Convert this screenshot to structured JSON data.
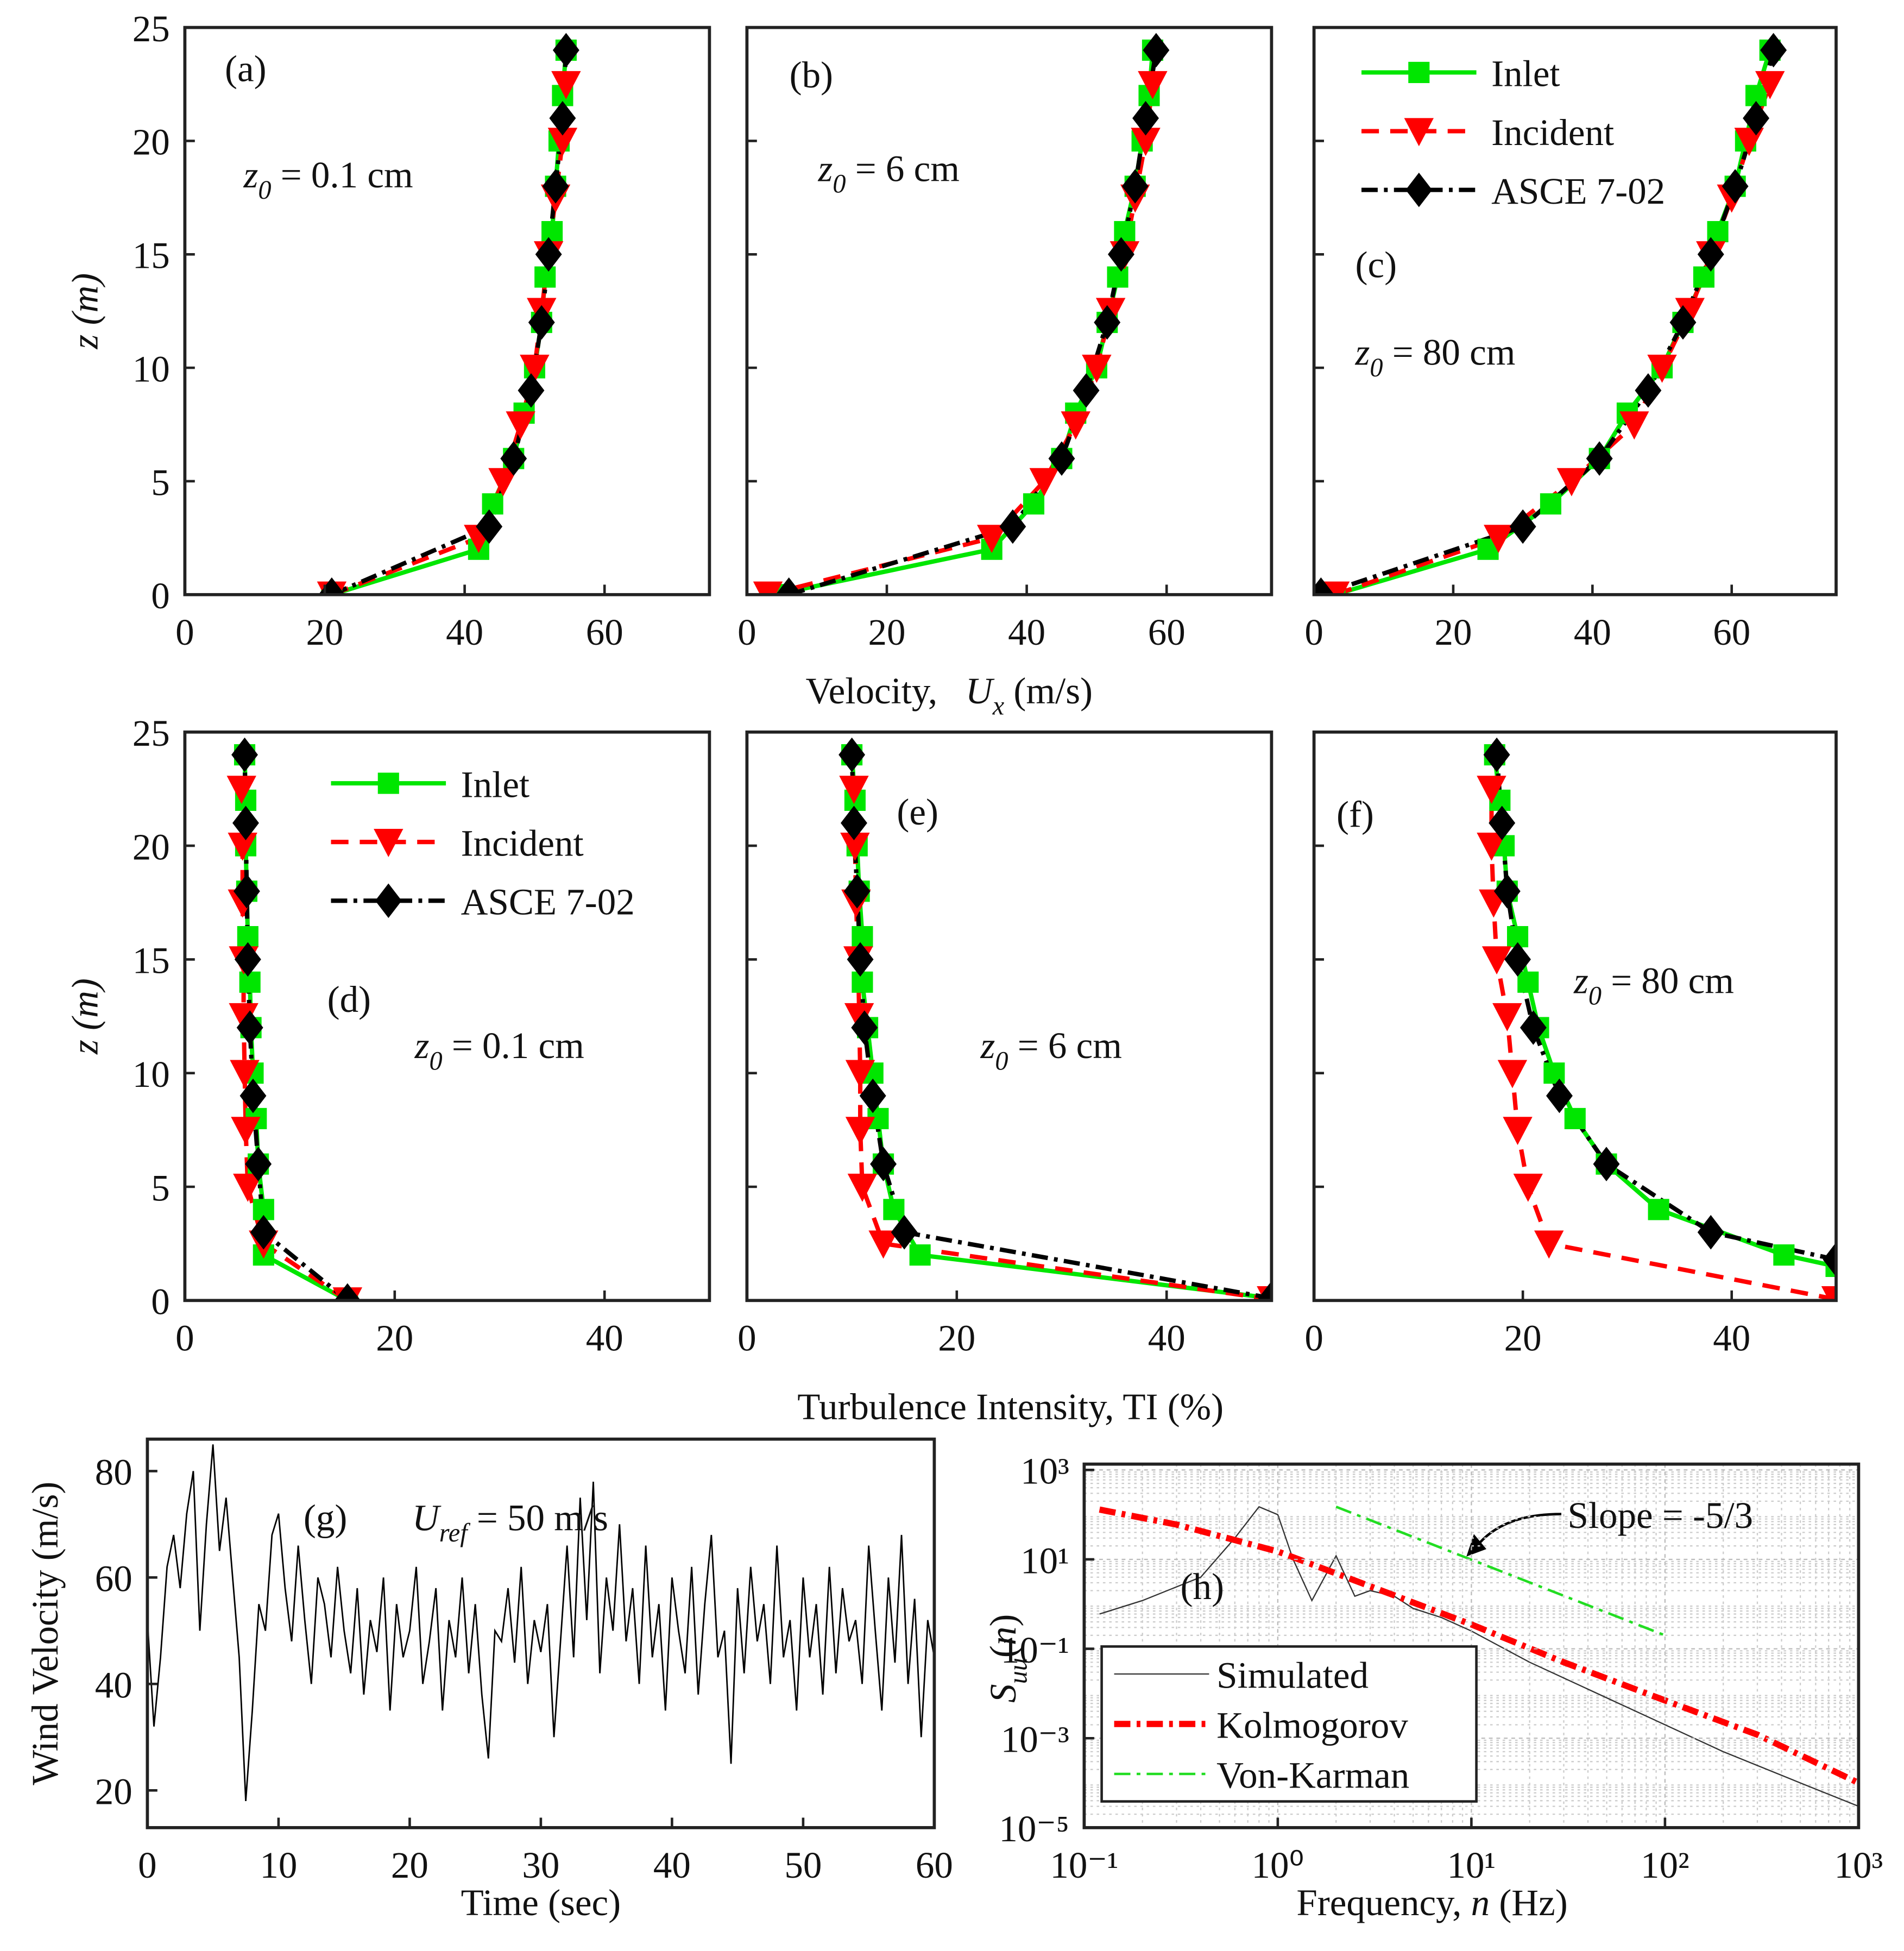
{
  "figure": {
    "top_xlabel": {
      "text": "Velocity,   ",
      "var": "U",
      "sub": "x",
      "unit": " (m/s)"
    },
    "mid_xlabel": "Turbulence Intensity, TI (%)"
  },
  "chart_data": [
    {
      "type": "profile",
      "label": "(a)",
      "annotation": {
        "z": "z",
        "sub": "0",
        "text": " = 0.1 cm"
      },
      "xlim": [
        0,
        75
      ],
      "xticks": [
        0,
        20,
        40,
        60
      ],
      "ylim": [
        0,
        25
      ],
      "yticks": [
        0,
        5,
        10,
        15,
        20,
        25
      ],
      "y_label": "z (m)",
      "ytick_labels": true,
      "series": [
        {
          "name": "Inlet",
          "color": "#00e600",
          "marker": "square",
          "dash": "solid",
          "y": [
            0,
            2,
            4,
            6,
            8,
            10,
            12,
            14,
            16,
            18,
            20,
            22,
            24
          ],
          "x": [
            21,
            42,
            44,
            47,
            48.5,
            50,
            51,
            51.5,
            52.5,
            53,
            53.5,
            54,
            54.5
          ]
        },
        {
          "name": "Incident",
          "color": "#ff0000",
          "marker": "triangle",
          "dash": "dashed",
          "y": [
            0,
            2.5,
            5,
            7.5,
            10,
            12.5,
            15,
            17.5,
            20,
            22.5
          ],
          "x": [
            21,
            42,
            45.5,
            48,
            50,
            51,
            52,
            53,
            54,
            54.5
          ]
        },
        {
          "name": "ASCE 7-02",
          "color": "#000000",
          "marker": "diamond",
          "dash": "dashdot",
          "y": [
            0,
            3,
            6,
            9,
            12,
            15,
            18,
            21,
            24
          ],
          "x": [
            21,
            43.5,
            47,
            49.5,
            51,
            52,
            53,
            54,
            54.5
          ]
        }
      ]
    },
    {
      "type": "profile",
      "label": "(b)",
      "annotation": {
        "z": "z",
        "sub": "0",
        "text": " = 6 cm"
      },
      "xlim": [
        0,
        75
      ],
      "xticks": [
        0,
        20,
        40,
        60
      ],
      "ylim": [
        0,
        25
      ],
      "yticks": [
        0,
        5,
        10,
        15,
        20,
        25
      ],
      "ytick_labels": false,
      "series": [
        {
          "name": "Inlet",
          "color": "#00e600",
          "marker": "square",
          "dash": "solid",
          "y": [
            0,
            2,
            4,
            6,
            8,
            10,
            12,
            14,
            16,
            18,
            20,
            22,
            24
          ],
          "x": [
            4,
            35,
            41,
            45,
            47,
            50,
            51.5,
            53,
            54,
            55.5,
            56.5,
            57.5,
            58
          ]
        },
        {
          "name": "Incident",
          "color": "#ff0000",
          "marker": "triangle",
          "dash": "dashed",
          "y": [
            0,
            2.5,
            5,
            7.5,
            10,
            12.5,
            15,
            17.5,
            20,
            22.5
          ],
          "x": [
            3,
            35,
            42.5,
            47,
            50,
            52,
            54,
            55.5,
            57,
            58
          ]
        },
        {
          "name": "ASCE 7-02",
          "color": "#000000",
          "marker": "diamond",
          "dash": "dashdot",
          "y": [
            0,
            3,
            6,
            9,
            12,
            15,
            18,
            21,
            24
          ],
          "x": [
            6,
            38,
            45,
            48.5,
            51.5,
            53.5,
            55.5,
            57,
            58.5
          ]
        }
      ]
    },
    {
      "type": "profile",
      "label": "(c)",
      "annotation": {
        "z": "z",
        "sub": "0",
        "text": " = 80 cm"
      },
      "xlim": [
        0,
        75
      ],
      "xticks": [
        0,
        20,
        40,
        60
      ],
      "ylim": [
        0,
        25
      ],
      "yticks": [
        0,
        5,
        10,
        15,
        20,
        25
      ],
      "ytick_labels": false,
      "legend": "upper right",
      "series": [
        {
          "name": "Inlet",
          "color": "#00e600",
          "marker": "square",
          "dash": "solid",
          "y": [
            0,
            2,
            4,
            6,
            8,
            10,
            12,
            14,
            16,
            18,
            20,
            22,
            24
          ],
          "x": [
            3,
            25,
            34,
            41,
            45,
            50,
            53,
            56,
            58,
            60.5,
            62,
            63.5,
            65.5
          ]
        },
        {
          "name": "Incident",
          "color": "#ff0000",
          "marker": "triangle",
          "dash": "dashed",
          "y": [
            0,
            2.5,
            5,
            7.5,
            10,
            12.5,
            15,
            17.5,
            20,
            22.5
          ],
          "x": [
            3,
            26.5,
            37,
            46,
            50,
            54,
            57,
            60,
            62.5,
            65.5
          ]
        },
        {
          "name": "ASCE 7-02",
          "color": "#000000",
          "marker": "diamond",
          "dash": "dashdot",
          "y": [
            0,
            3,
            6,
            9,
            12,
            15,
            18,
            21,
            24
          ],
          "x": [
            1,
            30,
            41,
            48,
            53,
            57,
            60.5,
            63.5,
            66
          ]
        }
      ]
    },
    {
      "type": "profile",
      "label": "(d)",
      "annotation": {
        "z": "z",
        "sub": "0",
        "text": " = 0.1 cm"
      },
      "xlim": [
        0,
        50
      ],
      "xticks": [
        0,
        20,
        40
      ],
      "ylim": [
        0,
        25
      ],
      "yticks": [
        0,
        5,
        10,
        15,
        20,
        25
      ],
      "y_label": "z (m)",
      "ytick_labels": true,
      "legend": "upper left",
      "series": [
        {
          "name": "Inlet",
          "color": "#00e600",
          "marker": "square",
          "dash": "solid",
          "y": [
            0,
            2,
            4,
            6,
            8,
            10,
            12,
            14,
            16,
            18,
            20,
            22,
            24
          ],
          "x": [
            15.5,
            7.5,
            7.5,
            7,
            6.8,
            6.5,
            6.3,
            6.2,
            6,
            5.9,
            5.8,
            5.8,
            5.7
          ]
        },
        {
          "name": "Incident",
          "color": "#ff0000",
          "marker": "triangle",
          "dash": "dashed",
          "y": [
            0,
            2.5,
            5,
            7.5,
            10,
            12.5,
            15,
            17.5,
            20,
            22.5
          ],
          "x": [
            15.5,
            7.5,
            6,
            5.8,
            5.7,
            5.6,
            5.6,
            5.5,
            5.5,
            5.4
          ]
        },
        {
          "name": "ASCE 7-02",
          "color": "#000000",
          "marker": "diamond",
          "dash": "dashdot",
          "y": [
            0,
            3,
            6,
            9,
            12,
            15,
            18,
            21,
            24
          ],
          "x": [
            15.5,
            7.5,
            7,
            6.5,
            6.2,
            6,
            5.9,
            5.8,
            5.7
          ]
        }
      ]
    },
    {
      "type": "profile",
      "label": "(e)",
      "annotation": {
        "z": "z",
        "sub": "0",
        "text": " = 6 cm"
      },
      "xlim": [
        0,
        50
      ],
      "xticks": [
        0,
        20,
        40
      ],
      "ylim": [
        0,
        25
      ],
      "yticks": [
        0,
        5,
        10,
        15,
        20,
        25
      ],
      "ytick_labels": false,
      "series": [
        {
          "name": "Inlet",
          "color": "#00e600",
          "marker": "square",
          "dash": "solid",
          "y": [
            0.1,
            2,
            4,
            6,
            8,
            10,
            12,
            14,
            16,
            18,
            20,
            22,
            24
          ],
          "x": [
            50,
            16.5,
            14,
            13,
            12.5,
            12,
            11.5,
            11,
            11,
            10.7,
            10.5,
            10.3,
            10
          ]
        },
        {
          "name": "Incident",
          "color": "#ff0000",
          "marker": "triangle",
          "dash": "dashed",
          "y": [
            0.05,
            2.5,
            5,
            7.5,
            10,
            12.5,
            15,
            17.5,
            20,
            22.5
          ],
          "x": [
            50,
            13,
            11,
            10.8,
            10.8,
            10.7,
            10.6,
            10.4,
            10.3,
            10.2
          ]
        },
        {
          "name": "ASCE 7-02",
          "color": "#000000",
          "marker": "diamond",
          "dash": "dashdot",
          "y": [
            0.1,
            3,
            6,
            9,
            12,
            15,
            18,
            21,
            24
          ],
          "x": [
            50,
            15,
            13,
            12,
            11.2,
            10.8,
            10.5,
            10.2,
            10
          ]
        }
      ]
    },
    {
      "type": "profile",
      "label": "(f)",
      "annotation": {
        "z": "z",
        "sub": "0",
        "text": " = 80 cm"
      },
      "xlim": [
        0,
        50
      ],
      "xticks": [
        0,
        20,
        40
      ],
      "ylim": [
        0,
        25
      ],
      "yticks": [
        0,
        5,
        10,
        15,
        20,
        25
      ],
      "ytick_labels": false,
      "series": [
        {
          "name": "Inlet",
          "color": "#00e600",
          "marker": "square",
          "dash": "solid",
          "y": [
            1.5,
            2,
            4,
            6,
            8,
            10,
            12,
            14,
            16,
            18,
            20,
            22,
            24
          ],
          "x": [
            50,
            45,
            33,
            28,
            25,
            23,
            21.5,
            20.5,
            19.5,
            18.5,
            18.2,
            17.8,
            17.3
          ]
        },
        {
          "name": "Incident",
          "color": "#ff0000",
          "marker": "triangle",
          "dash": "dashed",
          "y": [
            0.05,
            2.5,
            5,
            7.5,
            10,
            12.5,
            15,
            17.5,
            20,
            22.5
          ],
          "x": [
            50,
            22.5,
            20.5,
            19.5,
            19,
            18.5,
            17.5,
            17.2,
            17,
            17
          ]
        },
        {
          "name": "ASCE 7-02",
          "color": "#000000",
          "marker": "diamond",
          "dash": "dashdot",
          "y": [
            1.8,
            3,
            6,
            9,
            12,
            15,
            18,
            21,
            24
          ],
          "x": [
            50,
            38,
            28,
            23.5,
            21,
            19.5,
            18.5,
            18,
            17.5
          ]
        }
      ]
    },
    {
      "type": "line",
      "label": "(g)",
      "annotation": {
        "var": "U",
        "sub": "ref",
        "text": " = 50 m/s"
      },
      "x_label": "Time (sec)",
      "y_label": "Wind Velocity (m/s)",
      "color": "#000000",
      "xlim": [
        0,
        60
      ],
      "xticks": [
        0,
        10,
        20,
        30,
        40,
        50,
        60
      ],
      "ylim": [
        13,
        86
      ],
      "yticks": [
        20,
        40,
        60,
        80
      ],
      "x": [
        0,
        0.5,
        1,
        1.5,
        2,
        2.5,
        3,
        3.5,
        4,
        4.5,
        5,
        5.5,
        6,
        6.5,
        7,
        7.5,
        8,
        8.5,
        9,
        9.5,
        10,
        10.5,
        11,
        11.5,
        12,
        12.5,
        13,
        13.5,
        14,
        14.5,
        15,
        15.5,
        16,
        16.5,
        17,
        17.5,
        18,
        18.5,
        19,
        19.5,
        20,
        20.5,
        21,
        21.5,
        22,
        22.5,
        23,
        23.5,
        24,
        24.5,
        25,
        25.5,
        26,
        26.5,
        27,
        27.5,
        28,
        28.5,
        29,
        29.5,
        30,
        30.5,
        31,
        31.5,
        32,
        32.5,
        33,
        33.5,
        34,
        34.5,
        35,
        35.5,
        36,
        36.5,
        37,
        37.5,
        38,
        38.5,
        39,
        39.5,
        40,
        40.5,
        41,
        41.5,
        42,
        42.5,
        43,
        43.5,
        44,
        44.5,
        45,
        45.5,
        46,
        46.5,
        47,
        47.5,
        48,
        48.5,
        49,
        49.5,
        50,
        50.5,
        51,
        51.5,
        52,
        52.5,
        53,
        53.5,
        54,
        54.5,
        55,
        55.5,
        56,
        56.5,
        57,
        57.5,
        58,
        58.5,
        59,
        59.5,
        60
      ],
      "values": [
        52,
        32,
        45,
        62,
        68,
        58,
        72,
        80,
        50,
        70,
        85,
        65,
        75,
        60,
        45,
        18,
        35,
        55,
        50,
        68,
        72,
        58,
        48,
        66,
        52,
        40,
        60,
        55,
        45,
        62,
        50,
        42,
        58,
        38,
        52,
        46,
        60,
        35,
        55,
        45,
        50,
        62,
        40,
        48,
        58,
        35,
        52,
        45,
        60,
        42,
        55,
        38,
        26,
        50,
        48,
        58,
        44,
        62,
        40,
        52,
        46,
        55,
        30,
        48,
        66,
        45,
        75,
        52,
        78,
        42,
        60,
        50,
        70,
        48,
        58,
        40,
        66,
        45,
        55,
        35,
        60,
        50,
        42,
        62,
        38,
        55,
        68,
        45,
        50,
        25,
        58,
        42,
        62,
        48,
        55,
        40,
        66,
        45,
        52,
        35,
        60,
        45,
        55,
        38,
        62,
        42,
        58,
        48,
        52,
        40,
        66,
        50,
        35,
        60,
        44,
        68,
        40,
        56,
        30,
        52,
        45
      ]
    },
    {
      "type": "loglog",
      "label": "(h)",
      "annotation": {
        "text": "Slope = -5/3"
      },
      "x_label": {
        "text": "Frequency, ",
        "var": "n",
        "unit": " (Hz)"
      },
      "y_label": {
        "var": "S",
        "sub": "uu",
        "tail": "(",
        "arg": "n",
        "end": ")"
      },
      "xscale": "log",
      "yscale": "log",
      "grid": true,
      "legend": "lower left",
      "xlim": [
        0.1,
        1000
      ],
      "xticks": [
        {
          "value": 0.1,
          "label": "10⁻¹"
        },
        {
          "value": 1,
          "label": "10⁰"
        },
        {
          "value": 10,
          "label": "10¹"
        },
        {
          "value": 100,
          "label": "10²"
        },
        {
          "value": 1000,
          "label": "10³"
        }
      ],
      "ylim": [
        1e-05,
        1350
      ],
      "yticks": [
        {
          "value": 1e-05,
          "label": "10⁻⁵"
        },
        {
          "value": 0.001,
          "label": "10⁻³"
        },
        {
          "value": 0.1,
          "label": "10⁻¹"
        },
        {
          "value": 10,
          "label": "10¹"
        },
        {
          "value": 1000,
          "label": "10³"
        }
      ],
      "series": [
        {
          "name": "Simulated",
          "color": "#333333",
          "dash": "solid",
          "width": 1,
          "x": [
            0.12,
            0.2,
            0.4,
            0.6,
            0.8,
            1,
            1.2,
            1.5,
            2,
            2.5,
            3,
            4,
            5,
            7,
            10,
            20,
            50,
            100,
            200,
            500,
            1000
          ],
          "values": [
            0.6,
            1.2,
            4,
            30,
            150,
            100,
            10,
            1.2,
            12,
            1.5,
            2,
            1.5,
            0.8,
            0.5,
            0.25,
            0.05,
            0.008,
            0.002,
            0.0005,
            0.0001,
            3e-05
          ]
        },
        {
          "name": "Kolmogorov",
          "color": "#ff0000",
          "dash": "dashdot",
          "width": 5,
          "x": [
            0.12,
            0.3,
            1,
            3,
            10,
            30,
            100,
            300,
            1000
          ],
          "values": [
            130,
            60,
            15,
            2.5,
            0.35,
            0.05,
            0.007,
            0.0012,
            0.0001
          ]
        },
        {
          "name": "Von-Karman",
          "color": "#22dd22",
          "dash": "dashdot",
          "width": 2,
          "x": [
            2,
            100
          ],
          "values": [
            150,
            0.2
          ]
        }
      ]
    }
  ]
}
